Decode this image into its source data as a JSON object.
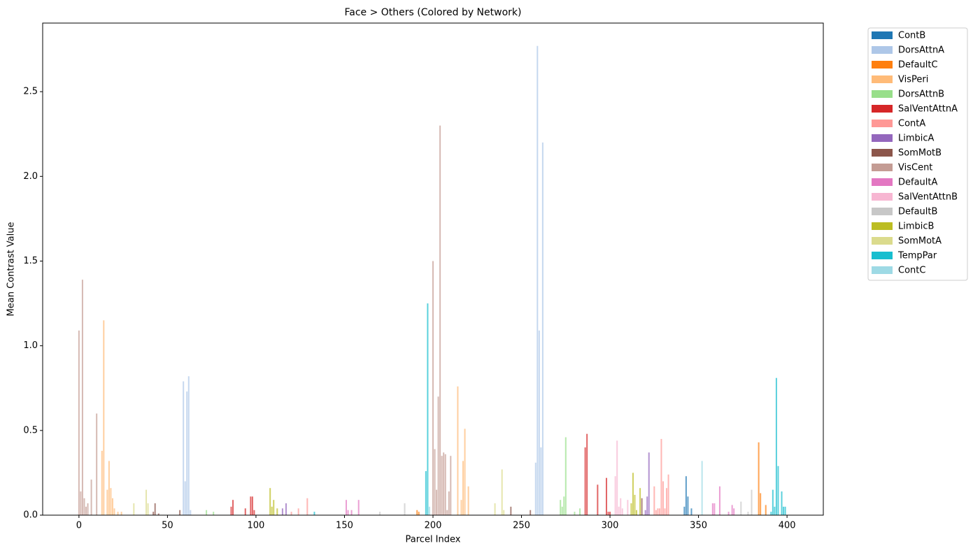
{
  "chart_data": {
    "type": "bar",
    "title": "Face > Others (Colored by Network)",
    "x_label": "Parcel Index",
    "y_label": "Mean Contrast Value",
    "xlim": [
      -20.5,
      420.5
    ],
    "ylim": [
      0,
      2.905
    ],
    "xticks": [
      0,
      50,
      100,
      150,
      200,
      250,
      300,
      350,
      400
    ],
    "yticks": [
      {
        "value": 0,
        "label": "0.0"
      },
      0.5,
      {
        "value": 1,
        "label": "1.0"
      },
      1.5,
      {
        "value": 2,
        "label": "2.0"
      },
      2.5
    ],
    "grid": false,
    "legend": "outside upper right",
    "bar_alpha": 0.7,
    "reference_line": 0,
    "series": [
      {
        "name": "ContB",
        "color": "#1f77b4",
        "x": [
          342,
          343,
          344,
          346
        ],
        "values": [
          0.05,
          0.23,
          0.11,
          0.04
        ]
      },
      {
        "name": "DorsAttnA",
        "color": "#aec7e8",
        "x": [
          59,
          60,
          61,
          62,
          63,
          258,
          259,
          260,
          261,
          262
        ],
        "values": [
          0.79,
          0.2,
          0.73,
          0.82,
          0.03,
          0.31,
          2.77,
          1.09,
          0.4,
          2.2
        ]
      },
      {
        "name": "DefaultC",
        "color": "#ff7f0e",
        "x": [
          191,
          192,
          384,
          385,
          388
        ],
        "values": [
          0.03,
          0.02,
          0.43,
          0.13,
          0.06
        ]
      },
      {
        "name": "VisPeri",
        "color": "#ffbb78",
        "x": [
          13,
          14,
          16,
          17,
          18,
          19,
          20,
          22,
          24,
          214,
          216,
          217,
          218,
          220
        ],
        "values": [
          0.38,
          1.15,
          0.15,
          0.32,
          0.16,
          0.1,
          0.04,
          0.02,
          0.02,
          0.76,
          0.09,
          0.32,
          0.51,
          0.17
        ]
      },
      {
        "name": "DorsAttnB",
        "color": "#98df8a",
        "x": [
          72,
          76,
          272,
          273,
          274,
          275,
          280,
          283
        ],
        "values": [
          0.03,
          0.02,
          0.09,
          0.05,
          0.11,
          0.46,
          0.02,
          0.04
        ]
      },
      {
        "name": "SalVentAttnA",
        "color": "#d62728",
        "x": [
          86,
          87,
          94,
          97,
          98,
          99,
          286,
          287,
          293,
          298,
          299,
          300
        ],
        "values": [
          0.05,
          0.09,
          0.04,
          0.11,
          0.11,
          0.03,
          0.4,
          0.48,
          0.18,
          0.22,
          0.02,
          0.02
        ]
      },
      {
        "name": "ContA",
        "color": "#ff9896",
        "x": [
          120,
          124,
          129,
          325,
          326,
          327,
          328,
          329,
          330,
          331,
          332,
          333
        ],
        "values": [
          0.02,
          0.04,
          0.1,
          0.17,
          0.03,
          0.04,
          0.04,
          0.45,
          0.2,
          0.04,
          0.16,
          0.24
        ]
      },
      {
        "name": "LimbicA",
        "color": "#9467bd",
        "x": [
          115,
          117,
          320,
          321,
          322
        ],
        "values": [
          0.04,
          0.07,
          0.03,
          0.11,
          0.37
        ]
      },
      {
        "name": "SomMotB",
        "color": "#8c564b",
        "x": [
          42,
          43,
          45,
          57,
          244,
          255,
          318
        ],
        "values": [
          0.02,
          0.07,
          0.01,
          0.03,
          0.05,
          0.03,
          0.1
        ]
      },
      {
        "name": "VisCent",
        "color": "#c49c94",
        "x": [
          0,
          1,
          2,
          3,
          4,
          5,
          7,
          10,
          200,
          201,
          202,
          203,
          204,
          205,
          206,
          207,
          208,
          209,
          210
        ],
        "values": [
          1.09,
          0.14,
          1.39,
          0.1,
          0.05,
          0.07,
          0.21,
          0.6,
          1.5,
          0.39,
          0.15,
          0.7,
          2.3,
          0.35,
          0.37,
          0.36,
          0.03,
          0.14,
          0.35
        ]
      },
      {
        "name": "DefaultA",
        "color": "#e377c2",
        "x": [
          151,
          152,
          154,
          158,
          358,
          359,
          362,
          367,
          369,
          370
        ],
        "values": [
          0.09,
          0.03,
          0.03,
          0.09,
          0.07,
          0.07,
          0.17,
          0.02,
          0.06,
          0.04
        ]
      },
      {
        "name": "SalVentAttnB",
        "color": "#f7b6d2",
        "x": [
          303,
          304,
          305,
          306,
          307,
          310
        ],
        "values": [
          0.23,
          0.44,
          0.05,
          0.1,
          0.04,
          0.09
        ]
      },
      {
        "name": "DefaultB",
        "color": "#c7c7c7",
        "x": [
          170,
          184,
          374,
          378,
          380
        ],
        "values": [
          0.02,
          0.07,
          0.08,
          0.02,
          0.15
        ]
      },
      {
        "name": "LimbicB",
        "color": "#bcbd22",
        "x": [
          108,
          109,
          110,
          112,
          312,
          313,
          314,
          315,
          317
        ],
        "values": [
          0.16,
          0.05,
          0.09,
          0.04,
          0.07,
          0.25,
          0.12,
          0.03,
          0.16
        ]
      },
      {
        "name": "SomMotA",
        "color": "#dbdb8d",
        "x": [
          31,
          38,
          39,
          235,
          239,
          240
        ],
        "values": [
          0.07,
          0.15,
          0.07,
          0.07,
          0.27,
          0.03
        ]
      },
      {
        "name": "TempPar",
        "color": "#17becf",
        "x": [
          133,
          196,
          197,
          391,
          392,
          393,
          394,
          395,
          397,
          398,
          399
        ],
        "values": [
          0.02,
          0.26,
          1.25,
          0.02,
          0.15,
          0.05,
          0.81,
          0.29,
          0.14,
          0.05,
          0.05
        ]
      },
      {
        "name": "ContC",
        "color": "#9edae5",
        "x": [
          198,
          352
        ],
        "values": [
          0.05,
          0.32
        ]
      }
    ]
  }
}
